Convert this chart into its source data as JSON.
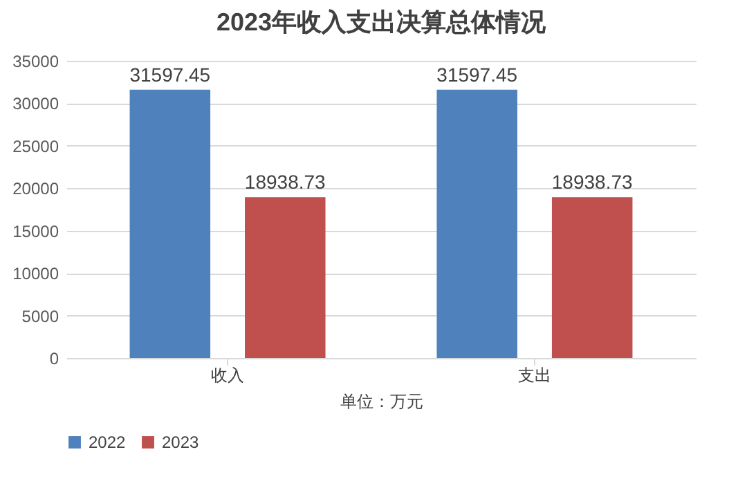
{
  "chart_data": {
    "type": "bar",
    "title": "2023年收入支出决算总体情况",
    "xlabel": "单位：万元",
    "categories": [
      "收入",
      "支出"
    ],
    "series": [
      {
        "name": "2022",
        "color": "#4f81bd",
        "values": [
          31597.45,
          31597.45
        ]
      },
      {
        "name": "2023",
        "color": "#c0504d",
        "values": [
          18938.73,
          18938.73
        ]
      }
    ],
    "ylim": [
      0,
      35000
    ],
    "yticks": [
      0,
      5000,
      10000,
      15000,
      20000,
      25000,
      30000,
      35000
    ],
    "grid": "y",
    "legend": "bottom",
    "data_labels": true
  }
}
